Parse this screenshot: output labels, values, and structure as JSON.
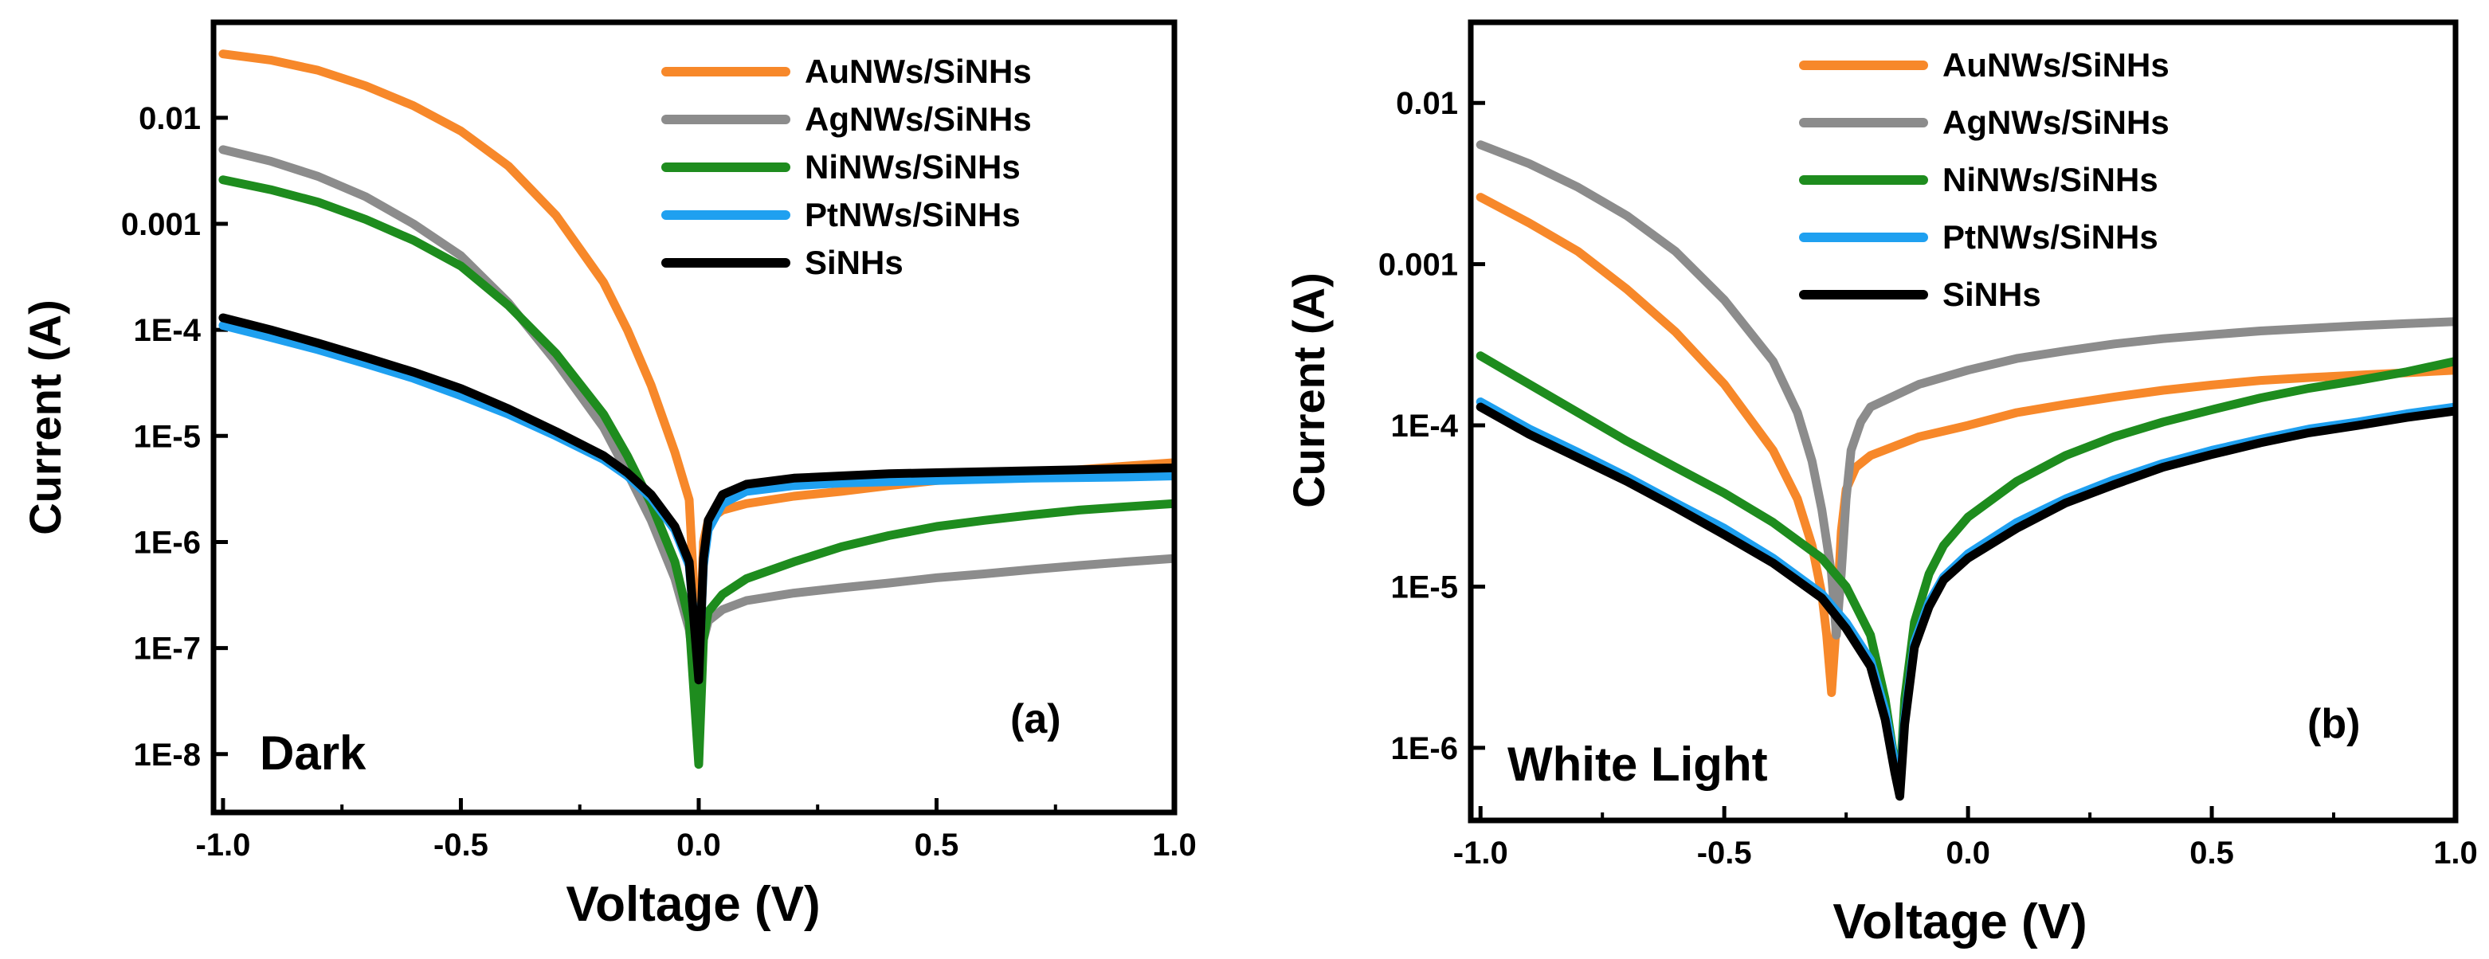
{
  "chart_data": [
    {
      "type": "line",
      "panel_label": "(a)",
      "condition_label": "Dark",
      "xlabel": "Voltage (V)",
      "ylabel": "Current (A)",
      "xlim": [
        -1.02,
        1.0
      ],
      "ylim_log10": [
        -8.55,
        -1.1
      ],
      "y_scale": "log",
      "x_ticks": [
        -1.0,
        -0.5,
        0.0,
        0.5,
        1.0
      ],
      "x_tick_labels": [
        "-1.0",
        "-0.5",
        "0.0",
        "0.5",
        "1.0"
      ],
      "y_ticks_log10": [
        -2,
        -3,
        -4,
        -5,
        -6,
        -7,
        -8
      ],
      "y_tick_labels": [
        "0.01",
        "0.001",
        "1E-4",
        "1E-5",
        "1E-6",
        "1E-7",
        "1E-8"
      ],
      "legend_position": "top-right",
      "series": [
        {
          "name": "AuNWs/SiNHs",
          "color": "#F7882A",
          "x": [
            -1.0,
            -0.9,
            -0.8,
            -0.7,
            -0.6,
            -0.5,
            -0.4,
            -0.3,
            -0.2,
            -0.15,
            -0.1,
            -0.05,
            -0.02,
            0.0,
            0.01,
            0.02,
            0.05,
            0.1,
            0.2,
            0.3,
            0.4,
            0.5,
            0.6,
            0.7,
            0.8,
            0.9,
            1.0
          ],
          "y": [
            0.04,
            0.035,
            0.028,
            0.02,
            0.013,
            0.0075,
            0.0035,
            0.0012,
            0.00028,
            0.0001,
            3e-05,
            7e-06,
            2.5e-06,
            5e-08,
            1e-06,
            1.6e-06,
            2e-06,
            2.3e-06,
            2.7e-06,
            3e-06,
            3.4e-06,
            3.8e-06,
            4.1e-06,
            4.4e-06,
            4.8e-06,
            5.2e-06,
            5.6e-06
          ]
        },
        {
          "name": "AgNWs/SiNHs",
          "color": "#8C8C8C",
          "x": [
            -1.0,
            -0.9,
            -0.8,
            -0.7,
            -0.6,
            -0.5,
            -0.4,
            -0.3,
            -0.2,
            -0.15,
            -0.1,
            -0.05,
            -0.02,
            0.0,
            0.01,
            0.02,
            0.05,
            0.1,
            0.2,
            0.3,
            0.4,
            0.5,
            0.6,
            0.7,
            0.8,
            0.9,
            1.0
          ],
          "y": [
            0.005,
            0.0039,
            0.0028,
            0.0018,
            0.001,
            0.0005,
            0.00018,
            5e-05,
            1.2e-05,
            4.5e-06,
            1.6e-06,
            4.5e-07,
            1.5e-07,
            3e-08,
            1.2e-07,
            1.8e-07,
            2.3e-07,
            2.8e-07,
            3.3e-07,
            3.7e-07,
            4.1e-07,
            4.6e-07,
            5e-07,
            5.5e-07,
            6e-07,
            6.5e-07,
            7e-07
          ]
        },
        {
          "name": "NiNWs/SiNHs",
          "color": "#1E8C1E",
          "x": [
            -1.0,
            -0.9,
            -0.8,
            -0.7,
            -0.6,
            -0.5,
            -0.4,
            -0.3,
            -0.2,
            -0.15,
            -0.1,
            -0.05,
            -0.02,
            0.0,
            0.01,
            0.02,
            0.05,
            0.1,
            0.2,
            0.3,
            0.4,
            0.5,
            0.6,
            0.7,
            0.8,
            0.9,
            1.0
          ],
          "y": [
            0.0026,
            0.0021,
            0.0016,
            0.0011,
            0.0007,
            0.0004,
            0.00017,
            6e-05,
            1.6e-05,
            6.5e-06,
            2.3e-06,
            6.5e-07,
            1.8e-07,
            8e-09,
            1.2e-07,
            2.2e-07,
            3.2e-07,
            4.5e-07,
            6.5e-07,
            9e-07,
            1.15e-06,
            1.4e-06,
            1.6e-06,
            1.8e-06,
            2e-06,
            2.15e-06,
            2.3e-06
          ]
        },
        {
          "name": "PtNWs/SiNHs",
          "color": "#1FA0F0",
          "x": [
            -1.0,
            -0.9,
            -0.8,
            -0.7,
            -0.6,
            -0.5,
            -0.4,
            -0.3,
            -0.2,
            -0.15,
            -0.1,
            -0.05,
            -0.02,
            0.0,
            0.01,
            0.02,
            0.05,
            0.1,
            0.2,
            0.3,
            0.4,
            0.5,
            0.6,
            0.7,
            0.8,
            0.9,
            1.0
          ],
          "y": [
            0.00011,
            8.5e-05,
            6.5e-05,
            4.8e-05,
            3.5e-05,
            2.4e-05,
            1.6e-05,
            1e-05,
            6e-06,
            4.2e-06,
            2.6e-06,
            1.3e-06,
            6e-07,
            6e-08,
            6e-07,
            1.3e-06,
            2.3e-06,
            3e-06,
            3.4e-06,
            3.6e-06,
            3.7e-06,
            3.8e-06,
            3.9e-06,
            4e-06,
            4.05e-06,
            4.1e-06,
            4.2e-06
          ]
        },
        {
          "name": "SiNHs",
          "color": "#000000",
          "x": [
            -1.0,
            -0.9,
            -0.8,
            -0.7,
            -0.6,
            -0.5,
            -0.4,
            -0.3,
            -0.2,
            -0.15,
            -0.1,
            -0.05,
            -0.02,
            0.0,
            0.01,
            0.02,
            0.05,
            0.1,
            0.2,
            0.3,
            0.4,
            0.5,
            0.6,
            0.7,
            0.8,
            0.9,
            1.0
          ],
          "y": [
            0.00013,
            0.0001,
            7.5e-05,
            5.5e-05,
            4e-05,
            2.8e-05,
            1.8e-05,
            1.1e-05,
            6.5e-06,
            4.5e-06,
            2.8e-06,
            1.4e-06,
            6.5e-07,
            5e-08,
            7e-07,
            1.6e-06,
            2.8e-06,
            3.5e-06,
            4e-06,
            4.2e-06,
            4.4e-06,
            4.5e-06,
            4.6e-06,
            4.7e-06,
            4.8e-06,
            4.9e-06,
            5e-06
          ]
        }
      ]
    },
    {
      "type": "line",
      "panel_label": "(b)",
      "condition_label": "White Light",
      "xlabel": "Voltage (V)",
      "ylabel": "Current (A)",
      "xlim": [
        -1.02,
        1.0
      ],
      "ylim_log10": [
        -6.45,
        -1.5
      ],
      "y_scale": "log",
      "x_ticks": [
        -1.0,
        -0.5,
        0.0,
        0.5,
        1.0
      ],
      "x_tick_labels": [
        "-1.0",
        "-0.5",
        "0.0",
        "0.5",
        "1.0"
      ],
      "y_ticks_log10": [
        -2,
        -3,
        -4,
        -5,
        -6
      ],
      "y_tick_labels": [
        "0.01",
        "0.001",
        "1E-4",
        "1E-5",
        "1E-6"
      ],
      "legend_position": "top-center",
      "series": [
        {
          "name": "AuNWs/SiNHs",
          "color": "#F7882A",
          "x": [
            -1.0,
            -0.9,
            -0.8,
            -0.7,
            -0.6,
            -0.5,
            -0.4,
            -0.35,
            -0.32,
            -0.3,
            -0.29,
            -0.28,
            -0.27,
            -0.26,
            -0.25,
            -0.23,
            -0.2,
            -0.1,
            0.0,
            0.1,
            0.2,
            0.3,
            0.4,
            0.5,
            0.6,
            0.7,
            0.8,
            0.9,
            1.0
          ],
          "y": [
            0.0026,
            0.0018,
            0.0012,
            0.0007,
            0.00038,
            0.00018,
            7e-05,
            3.5e-05,
            1.8e-05,
            9e-06,
            5e-06,
            2.2e-06,
            6e-06,
            2.2e-05,
            4e-05,
            5.5e-05,
            6.5e-05,
            8.5e-05,
            0.0001,
            0.00012,
            0.000135,
            0.00015,
            0.000165,
            0.000178,
            0.00019,
            0.000198,
            0.000205,
            0.000212,
            0.00022
          ]
        },
        {
          "name": "AgNWs/SiNHs",
          "color": "#8C8C8C",
          "x": [
            -1.0,
            -0.9,
            -0.8,
            -0.7,
            -0.6,
            -0.5,
            -0.4,
            -0.35,
            -0.32,
            -0.3,
            -0.28,
            -0.27,
            -0.26,
            -0.25,
            -0.24,
            -0.22,
            -0.2,
            -0.1,
            0.0,
            0.1,
            0.2,
            0.3,
            0.4,
            0.5,
            0.6,
            0.7,
            0.8,
            0.9,
            1.0
          ],
          "y": [
            0.0055,
            0.0042,
            0.003,
            0.002,
            0.0012,
            0.0006,
            0.00025,
            0.00012,
            6e-05,
            3e-05,
            1.2e-05,
            5e-06,
            1.2e-05,
            3.5e-05,
            7e-05,
            0.000105,
            0.00013,
            0.00018,
            0.00022,
            0.00026,
            0.00029,
            0.00032,
            0.000345,
            0.000365,
            0.000385,
            0.0004,
            0.000415,
            0.000428,
            0.00044
          ]
        },
        {
          "name": "NiNWs/SiNHs",
          "color": "#1E8C1E",
          "x": [
            -1.0,
            -0.9,
            -0.8,
            -0.7,
            -0.6,
            -0.5,
            -0.4,
            -0.3,
            -0.25,
            -0.2,
            -0.17,
            -0.15,
            -0.14,
            -0.13,
            -0.11,
            -0.08,
            -0.05,
            0.0,
            0.1,
            0.2,
            0.3,
            0.4,
            0.5,
            0.6,
            0.7,
            0.8,
            0.9,
            1.0
          ],
          "y": [
            0.00027,
            0.00018,
            0.00012,
            8e-05,
            5.5e-05,
            3.8e-05,
            2.5e-05,
            1.5e-05,
            1e-05,
            5e-06,
            2e-06,
            8e-07,
            6e-07,
            2e-06,
            6e-06,
            1.2e-05,
            1.8e-05,
            2.7e-05,
            4.5e-05,
            6.5e-05,
            8.5e-05,
            0.000105,
            0.000125,
            0.000148,
            0.00017,
            0.00019,
            0.000215,
            0.00025
          ]
        },
        {
          "name": "PtNWs/SiNHs",
          "color": "#1FA0F0",
          "x": [
            -1.0,
            -0.9,
            -0.8,
            -0.7,
            -0.6,
            -0.5,
            -0.4,
            -0.3,
            -0.25,
            -0.2,
            -0.17,
            -0.15,
            -0.14,
            -0.13,
            -0.11,
            -0.08,
            -0.05,
            0.0,
            0.1,
            0.2,
            0.3,
            0.4,
            0.5,
            0.6,
            0.7,
            0.8,
            0.9,
            1.0
          ],
          "y": [
            0.00014,
            9.5e-05,
            6.8e-05,
            4.8e-05,
            3.3e-05,
            2.3e-05,
            1.5e-05,
            9e-06,
            6e-06,
            3.5e-06,
            1.7e-06,
            8e-07,
            5.5e-07,
            1.5e-06,
            4.5e-06,
            8e-06,
            1.15e-05,
            1.6e-05,
            2.5e-05,
            3.5e-05,
            4.6e-05,
            5.8e-05,
            7e-05,
            8.2e-05,
            9.5e-05,
            0.000105,
            0.000118,
            0.00013
          ]
        },
        {
          "name": "SiNHs",
          "color": "#000000",
          "x": [
            -1.0,
            -0.9,
            -0.8,
            -0.7,
            -0.6,
            -0.5,
            -0.4,
            -0.3,
            -0.25,
            -0.2,
            -0.17,
            -0.15,
            -0.14,
            -0.13,
            -0.11,
            -0.08,
            -0.05,
            0.0,
            0.1,
            0.2,
            0.3,
            0.4,
            0.5,
            0.6,
            0.7,
            0.8,
            0.9,
            1.0
          ],
          "y": [
            0.00013,
            8.8e-05,
            6.3e-05,
            4.5e-05,
            3.1e-05,
            2.1e-05,
            1.4e-05,
            8.5e-06,
            5.5e-06,
            3.2e-06,
            1.5e-06,
            7e-07,
            5e-07,
            1.4e-06,
            4.2e-06,
            7.5e-06,
            1.1e-05,
            1.5e-05,
            2.3e-05,
            3.3e-05,
            4.3e-05,
            5.5e-05,
            6.6e-05,
            7.8e-05,
            9e-05,
            0.0001,
            0.000112,
            0.000123
          ]
        }
      ]
    }
  ]
}
